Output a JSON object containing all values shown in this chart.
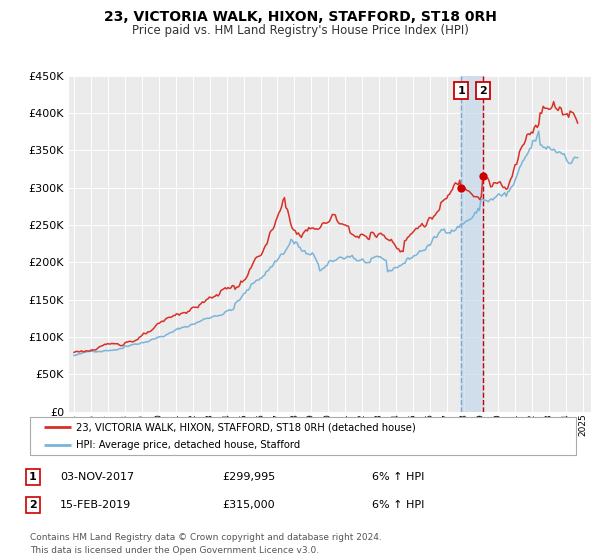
{
  "title": "23, VICTORIA WALK, HIXON, STAFFORD, ST18 0RH",
  "subtitle": "Price paid vs. HM Land Registry's House Price Index (HPI)",
  "ylim": [
    0,
    450000
  ],
  "yticks": [
    0,
    50000,
    100000,
    150000,
    200000,
    250000,
    300000,
    350000,
    400000,
    450000
  ],
  "xlim_start": 1994.7,
  "xlim_end": 2025.5,
  "background_color": "#ffffff",
  "plot_bg_color": "#ebebeb",
  "grid_color": "#ffffff",
  "sale1_date": 2017.84,
  "sale1_price": 299995,
  "sale2_date": 2019.12,
  "sale2_price": 315000,
  "legend_line1": "23, VICTORIA WALK, HIXON, STAFFORD, ST18 0RH (detached house)",
  "legend_line2": "HPI: Average price, detached house, Stafford",
  "table_row1": [
    "1",
    "03-NOV-2017",
    "£299,995",
    "6% ↑ HPI"
  ],
  "table_row2": [
    "2",
    "15-FEB-2019",
    "£315,000",
    "6% ↑ HPI"
  ],
  "footer_line1": "Contains HM Land Registry data © Crown copyright and database right 2024.",
  "footer_line2": "This data is licensed under the Open Government Licence v3.0.",
  "hpi_color": "#7ab4d8",
  "price_color": "#d73027",
  "marker_color": "#cc0000",
  "vspan_color": "#c5d9ed",
  "vline2_color": "#cc0000",
  "vline1_color": "#6699cc"
}
